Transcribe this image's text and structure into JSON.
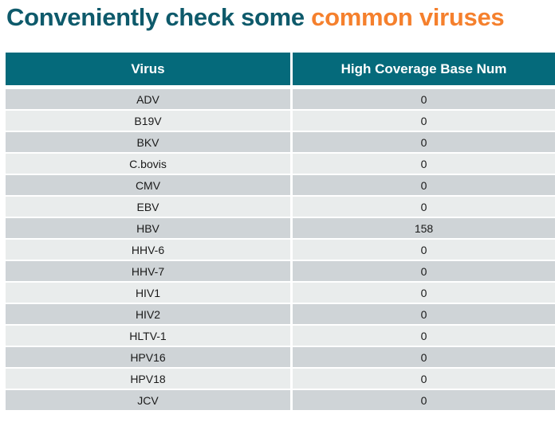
{
  "title": {
    "prefix": "Conveniently check some ",
    "highlight": "common viruses"
  },
  "colors": {
    "title_teal": "#0e5a6b",
    "title_orange": "#f5802d",
    "header_bg": "#056a7b",
    "header_text": "#ffffff",
    "row_dark": "#cfd4d7",
    "row_light": "#e9ecec",
    "cell_text": "#1a1a1a"
  },
  "table": {
    "columns": [
      "Virus",
      "High Coverage Base Num"
    ],
    "rows": [
      [
        "ADV",
        "0"
      ],
      [
        "B19V",
        "0"
      ],
      [
        "BKV",
        "0"
      ],
      [
        "C.bovis",
        "0"
      ],
      [
        "CMV",
        "0"
      ],
      [
        "EBV",
        "0"
      ],
      [
        "HBV",
        "158"
      ],
      [
        "HHV-6",
        "0"
      ],
      [
        "HHV-7",
        "0"
      ],
      [
        "HIV1",
        "0"
      ],
      [
        "HIV2",
        "0"
      ],
      [
        "HLTV-1",
        "0"
      ],
      [
        "HPV16",
        "0"
      ],
      [
        "HPV18",
        "0"
      ],
      [
        "JCV",
        "0"
      ]
    ]
  }
}
